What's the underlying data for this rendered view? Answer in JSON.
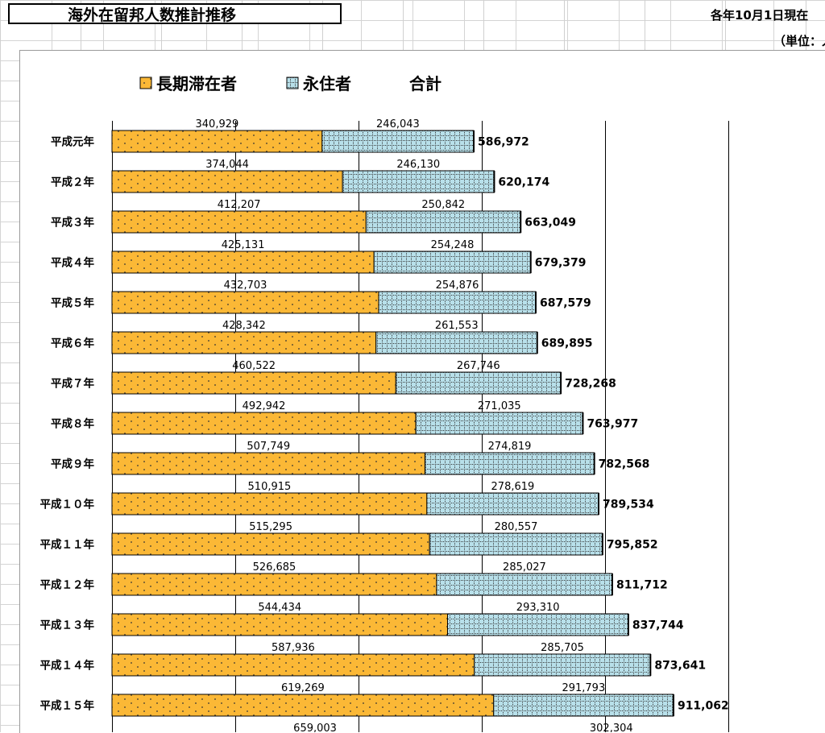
{
  "sheet": {
    "title": "海外在留邦人数推計推移",
    "date_note": "各年10月1日現在",
    "unit_note": "（単位：人）"
  },
  "chart_data": {
    "type": "bar",
    "orientation": "horizontal",
    "stacked": true,
    "categories": [
      "平成元年",
      "平成２年",
      "平成３年",
      "平成４年",
      "平成５年",
      "平成６年",
      "平成７年",
      "平成８年",
      "平成９年",
      "平成１０年",
      "平成１１年",
      "平成１２年",
      "平成１３年",
      "平成１４年",
      "平成１５年"
    ],
    "series": [
      {
        "name": "長期滞在者",
        "color": "#fbb836",
        "pattern": "dots",
        "values": [
          340929,
          374044,
          412207,
          425131,
          432703,
          428342,
          460522,
          492942,
          507749,
          510915,
          515295,
          526685,
          544434,
          587936,
          619269
        ]
      },
      {
        "name": "永住者",
        "color": "#b8e0ea",
        "pattern": "grid",
        "values": [
          246043,
          246130,
          250842,
          254248,
          254876,
          261553,
          267746,
          271035,
          274819,
          278619,
          280557,
          285027,
          293310,
          285705,
          291793
        ]
      }
    ],
    "totals_name": "合計",
    "totals": [
      586972,
      620174,
      663049,
      679379,
      687579,
      689895,
      728268,
      763977,
      782568,
      789534,
      795852,
      811712,
      837744,
      873641,
      911062
    ],
    "next_row_values": [
      659003,
      302304
    ],
    "xlim": [
      0,
      1400000
    ],
    "grid_interval": 200000,
    "legend_position": "top"
  }
}
